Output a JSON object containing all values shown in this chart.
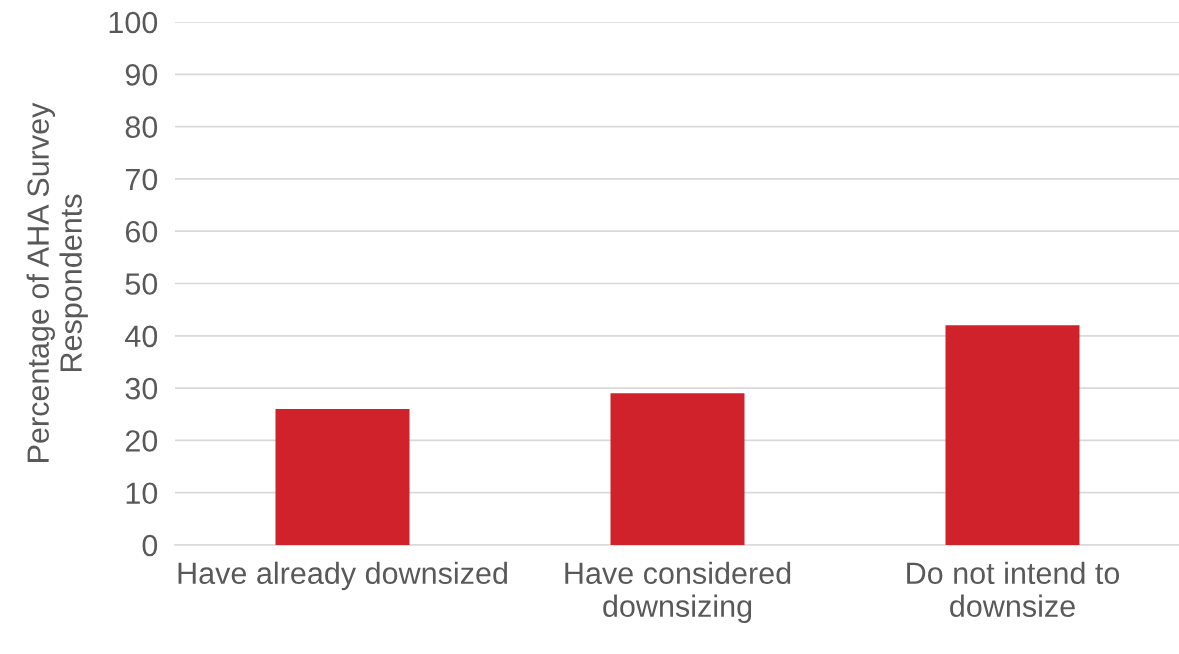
{
  "chart_data": {
    "type": "bar",
    "ylabel": "Percentage of AHA Survey\nRespondents",
    "categories": [
      "Have already downsized",
      "Have considered\ndownsizing",
      "Do not intend to\ndownsize"
    ],
    "values": [
      26,
      29,
      42
    ],
    "color": "#d0222b",
    "ylim": [
      0,
      100
    ],
    "yticks": [
      0,
      10,
      20,
      30,
      40,
      50,
      60,
      70,
      80,
      90,
      100
    ],
    "grid": "y",
    "legend": false
  }
}
